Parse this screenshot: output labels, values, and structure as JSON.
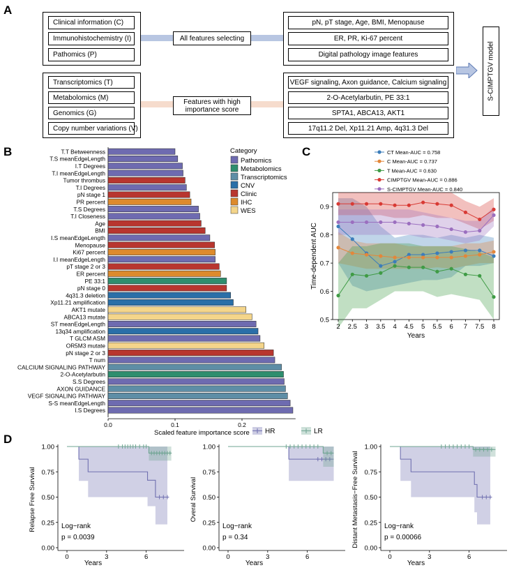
{
  "panels": {
    "A": "A",
    "B": "B",
    "C": "C",
    "D": "D"
  },
  "colors": {
    "Pathomics": "#6E6BB0",
    "Metabolomics": "#2E8E6E",
    "Transcriptomics": "#5E8EA6",
    "CNV": "#2A6FA8",
    "Clinic": "#B8362F",
    "IHC": "#DD8A2C",
    "WES": "#F4D58A",
    "blue_band": "#B8C6E2",
    "peach_band": "#F6DCCD"
  },
  "panelA": {
    "left_top": [
      "Clinical information (C)",
      "Immunohistochemistry (I)",
      "Pathomics (P)"
    ],
    "left_bottom": [
      "Transcriptomics (T)",
      "Metabolomics (M)",
      "Genomics (G)",
      "Copy number variations (V)"
    ],
    "middle_top": "All features selecting",
    "middle_bottom": "Features with high importance score",
    "right_top": [
      "pN, pT stage, Age, BMI, Menopause",
      "ER, PR, Ki-67 percent",
      "Digital pathology image features"
    ],
    "right_bottom": [
      "VEGF signaling, Axon guidance, Calcium signaling",
      "2-O-Acetylarbutin, PE 33:1",
      "SPTA1, ABCA13, AKT1",
      "17q11.2 Del, Xp11.21 Amp, 4q31.3 Del"
    ],
    "model": "S-CIMPTGV model"
  },
  "chart_data": [
    {
      "type": "bar",
      "orientation": "horizontal",
      "xlabel": "Scaled feature importance score",
      "xticks": [
        "0.0",
        "0.1",
        "0.2"
      ],
      "xlim": [
        0,
        0.28
      ],
      "legend_title": "Category",
      "legend": [
        "Pathomics",
        "Metabolomics",
        "Transcriptomics",
        "CNV",
        "Clinic",
        "IHC",
        "WES"
      ],
      "bars": [
        {
          "label": "T.T Betweenness",
          "value": 0.1,
          "cat": "Pathomics"
        },
        {
          "label": "T.S meanEdgeLength",
          "value": 0.104,
          "cat": "Pathomics"
        },
        {
          "label": "I.T Degrees",
          "value": 0.111,
          "cat": "Pathomics"
        },
        {
          "label": "T.I meanEdgeLength",
          "value": 0.112,
          "cat": "Pathomics"
        },
        {
          "label": "Tumor thrombus",
          "value": 0.115,
          "cat": "Clinic"
        },
        {
          "label": "T.I Degrees",
          "value": 0.117,
          "cat": "Pathomics"
        },
        {
          "label": "pN stage 1",
          "value": 0.122,
          "cat": "Clinic"
        },
        {
          "label": "PR percent",
          "value": 0.124,
          "cat": "IHC"
        },
        {
          "label": "T.S Degrees",
          "value": 0.135,
          "cat": "Pathomics"
        },
        {
          "label": "T.I Closeness",
          "value": 0.137,
          "cat": "Pathomics"
        },
        {
          "label": "Age",
          "value": 0.139,
          "cat": "Clinic"
        },
        {
          "label": "BMI",
          "value": 0.145,
          "cat": "Clinic"
        },
        {
          "label": "I.S meanEdgeLength",
          "value": 0.152,
          "cat": "Pathomics"
        },
        {
          "label": "Menopause",
          "value": 0.159,
          "cat": "Clinic"
        },
        {
          "label": "Ki67 percent",
          "value": 0.16,
          "cat": "IHC"
        },
        {
          "label": "I.I meanEdgeLength",
          "value": 0.16,
          "cat": "Pathomics"
        },
        {
          "label": "pT stage 2 or 3",
          "value": 0.166,
          "cat": "Clinic"
        },
        {
          "label": "ER percent",
          "value": 0.168,
          "cat": "IHC"
        },
        {
          "label": "PE 33:1",
          "value": 0.177,
          "cat": "Metabolomics"
        },
        {
          "label": "pN stage 0",
          "value": 0.177,
          "cat": "Clinic"
        },
        {
          "label": "4q31.3 deletion",
          "value": 0.183,
          "cat": "CNV"
        },
        {
          "label": "Xp11.21 amplification",
          "value": 0.187,
          "cat": "CNV"
        },
        {
          "label": "AKT1 mutate",
          "value": 0.206,
          "cat": "WES"
        },
        {
          "label": "ABCA13 mutate",
          "value": 0.215,
          "cat": "WES"
        },
        {
          "label": "ST meanEdgeLength",
          "value": 0.221,
          "cat": "Pathomics"
        },
        {
          "label": "13q34 amplification",
          "value": 0.224,
          "cat": "CNV"
        },
        {
          "label": "T GLCM ASM",
          "value": 0.227,
          "cat": "Pathomics"
        },
        {
          "label": "OR5M3 mutate",
          "value": 0.233,
          "cat": "WES"
        },
        {
          "label": "pN stage 2 or 3",
          "value": 0.247,
          "cat": "Clinic"
        },
        {
          "label": "T num",
          "value": 0.249,
          "cat": "Pathomics"
        },
        {
          "label": "CALCIUM SIGNALING PATHWAY",
          "value": 0.259,
          "cat": "Transcriptomics"
        },
        {
          "label": "2-O-Acetylarbutin",
          "value": 0.262,
          "cat": "Metabolomics"
        },
        {
          "label": "S.S Degrees",
          "value": 0.263,
          "cat": "Pathomics"
        },
        {
          "label": "AXON GUIDANCE",
          "value": 0.265,
          "cat": "Transcriptomics"
        },
        {
          "label": "VEGF SIGNALING PATHWAY",
          "value": 0.268,
          "cat": "Transcriptomics"
        },
        {
          "label": "S-S meanEdgeLength",
          "value": 0.272,
          "cat": "Pathomics"
        },
        {
          "label": "I.S Degrees",
          "value": 0.276,
          "cat": "Pathomics"
        }
      ]
    },
    {
      "type": "line",
      "xlabel": "Years",
      "ylabel": "Time-dependent AUC",
      "x": [
        2,
        2.5,
        3,
        3.5,
        4,
        4.5,
        5,
        5.5,
        6,
        7,
        7.5,
        8
      ],
      "xticks": [
        "2",
        "2.5",
        "3",
        "3.5",
        "4",
        "4.5",
        "5",
        "5.5",
        "6",
        "7",
        "7.5",
        "8"
      ],
      "yticks": [
        "0.5",
        "0.6",
        "0.7",
        "0.8",
        "0.9"
      ],
      "ylim": [
        0.5,
        0.95
      ],
      "series": [
        {
          "name": "CT Mean-AUC = 0.758",
          "color": "#3C7DBA",
          "values": [
            0.83,
            0.785,
            0.735,
            0.69,
            0.705,
            0.73,
            0.73,
            0.735,
            0.74,
            0.745,
            0.745,
            0.725
          ],
          "lower": [
            0.7,
            0.62,
            0.6,
            0.61,
            0.62,
            0.63,
            0.64,
            0.64,
            0.65,
            0.69,
            0.69,
            0.7
          ],
          "upper": [
            0.93,
            0.93,
            0.9,
            0.83,
            0.79,
            0.8,
            0.8,
            0.79,
            0.8,
            0.79,
            0.8,
            0.79
          ]
        },
        {
          "name": "C Mean-AUC = 0.737",
          "color": "#E3873A",
          "values": [
            0.755,
            0.735,
            0.73,
            0.725,
            0.72,
            0.72,
            0.72,
            0.72,
            0.72,
            0.725,
            0.73,
            0.74
          ],
          "lower": [
            0.7,
            0.69,
            0.68,
            0.68,
            0.68,
            0.68,
            0.68,
            0.685,
            0.68,
            0.69,
            0.7,
            0.7
          ],
          "upper": [
            0.81,
            0.78,
            0.77,
            0.77,
            0.77,
            0.76,
            0.76,
            0.76,
            0.76,
            0.77,
            0.77,
            0.78
          ]
        },
        {
          "name": "T Mean-AUC = 0.630",
          "color": "#3F9B45",
          "values": [
            0.585,
            0.66,
            0.655,
            0.665,
            0.69,
            0.685,
            0.685,
            0.67,
            0.68,
            0.66,
            0.655,
            0.58
          ],
          "lower": [
            0.47,
            0.54,
            0.54,
            0.57,
            0.6,
            0.6,
            0.6,
            0.58,
            0.59,
            0.58,
            0.57,
            0.5
          ],
          "upper": [
            0.7,
            0.76,
            0.76,
            0.77,
            0.77,
            0.77,
            0.76,
            0.76,
            0.76,
            0.75,
            0.74,
            0.72
          ]
        },
        {
          "name": "CIMPTGV Mean-AUC = 0.886",
          "color": "#D83A34",
          "values": [
            0.91,
            0.91,
            0.91,
            0.91,
            0.905,
            0.905,
            0.915,
            0.91,
            0.905,
            0.88,
            0.855,
            0.89
          ],
          "lower": [
            0.87,
            0.87,
            0.87,
            0.87,
            0.86,
            0.86,
            0.87,
            0.86,
            0.86,
            0.84,
            0.82,
            0.85
          ],
          "upper": [
            0.95,
            0.95,
            0.95,
            0.95,
            0.95,
            0.95,
            0.95,
            0.95,
            0.95,
            0.92,
            0.9,
            0.93
          ]
        },
        {
          "name": "S-CIMPTGV Mean-AUC = 0.840",
          "color": "#9B6FBF",
          "values": [
            0.845,
            0.845,
            0.845,
            0.845,
            0.845,
            0.84,
            0.835,
            0.83,
            0.82,
            0.81,
            0.815,
            0.87
          ],
          "lower": [
            0.8,
            0.8,
            0.8,
            0.8,
            0.8,
            0.8,
            0.79,
            0.79,
            0.78,
            0.77,
            0.78,
            0.83
          ],
          "upper": [
            0.89,
            0.89,
            0.89,
            0.89,
            0.89,
            0.89,
            0.88,
            0.87,
            0.86,
            0.85,
            0.85,
            0.9
          ]
        }
      ]
    },
    {
      "type": "line",
      "subtype": "kaplan-meier",
      "legend": [
        {
          "name": "HR",
          "color": "#7070B0"
        },
        {
          "name": "LR",
          "color": "#6FA592"
        }
      ],
      "plots": [
        {
          "ylabel": "Relapse Free Survival",
          "xlabel": "Years",
          "test": "Log−rank",
          "pvalue": "p = 0.0039",
          "xticks": [
            "0",
            "3",
            "6"
          ],
          "yticks": [
            "0.00",
            "0.25",
            "0.50",
            "0.75",
            "1.00"
          ],
          "xlim": [
            0,
            8.5
          ],
          "HR": {
            "t": [
              0,
              0.9,
              0.9,
              1.6,
              1.6,
              6.1,
              6.1,
              6.7,
              6.7,
              7.6
            ],
            "s": [
              1,
              1,
              0.875,
              0.875,
              0.75,
              0.75,
              0.667,
              0.667,
              0.5,
              0.5
            ],
            "lo": [
              1,
              1,
              0.66,
              0.66,
              0.5,
              0.5,
              0.41,
              0.41,
              0.23,
              0.23
            ],
            "hi": [
              1,
              1,
              1,
              1,
              1,
              1,
              1,
              1,
              1,
              1
            ],
            "censor": [
              7.0,
              7.3,
              7.6
            ]
          },
          "LR": {
            "t": [
              0,
              6.2,
              6.2,
              7.9
            ],
            "s": [
              1,
              1,
              0.935,
              0.935
            ],
            "lo": [
              1,
              1,
              0.86,
              0.86
            ],
            "hi": [
              1,
              1,
              1,
              1
            ],
            "censor": [
              3.9,
              4.2,
              4.4,
              4.6,
              4.8,
              5.0,
              5.2,
              5.5,
              5.8,
              6.0,
              6.4,
              6.6,
              6.8,
              7.0,
              7.2,
              7.4,
              7.6,
              7.8
            ]
          }
        },
        {
          "ylabel": "Overal Survival",
          "xlabel": "Years",
          "test": "Log−rank",
          "pvalue": "p = 0.34",
          "xticks": [
            "0",
            "3",
            "6"
          ],
          "yticks": [
            "0.00",
            "0.25",
            "0.50",
            "0.75",
            "1.00"
          ],
          "xlim": [
            0,
            8.5
          ],
          "HR": {
            "t": [
              0,
              4.6,
              4.6,
              8.0
            ],
            "s": [
              1,
              1,
              0.875,
              0.875
            ],
            "lo": [
              1,
              1,
              0.66,
              0.66
            ],
            "hi": [
              1,
              1,
              1,
              1
            ],
            "censor": [
              6.8,
              7.1,
              7.4,
              7.7
            ]
          },
          "LR": {
            "t": [
              0,
              7.2,
              7.2,
              8.0
            ],
            "s": [
              1,
              1,
              0.935,
              0.935
            ],
            "lo": [
              1,
              1,
              0.8,
              0.8
            ],
            "hi": [
              1,
              1,
              1,
              1
            ],
            "censor": [
              4.4,
              4.7,
              5.0,
              5.3,
              5.6,
              5.9,
              6.2,
              6.5,
              6.8,
              7.5,
              7.8
            ]
          }
        },
        {
          "ylabel": "Distant Metastasis−Free Survival",
          "xlabel": "Years",
          "test": "Log−rank",
          "pvalue": "p = 0.00066",
          "xticks": [
            "0",
            "3",
            "6"
          ],
          "yticks": [
            "0.00",
            "0.25",
            "0.50",
            "0.75",
            "1.00"
          ],
          "xlim": [
            0,
            8.5
          ],
          "HR": {
            "t": [
              0,
              0.8,
              0.8,
              1.6,
              1.6,
              6.4,
              6.4,
              6.6,
              6.6,
              7.6
            ],
            "s": [
              1,
              1,
              0.875,
              0.875,
              0.75,
              0.75,
              0.625,
              0.625,
              0.5,
              0.5
            ],
            "lo": [
              1,
              1,
              0.66,
              0.66,
              0.5,
              0.5,
              0.35,
              0.35,
              0.23,
              0.23
            ],
            "hi": [
              1,
              1,
              1,
              1,
              1,
              1,
              1,
              1,
              1,
              1
            ],
            "censor": [
              7.0,
              7.3,
              7.6
            ]
          },
          "LR": {
            "t": [
              0,
              6.3,
              6.3,
              8.0
            ],
            "s": [
              1,
              1,
              0.97,
              0.97
            ],
            "lo": [
              1,
              1,
              0.9,
              0.9
            ],
            "hi": [
              1,
              1,
              1,
              1
            ],
            "censor": [
              3.9,
              4.2,
              4.5,
              4.8,
              5.1,
              5.4,
              5.7,
              6.0,
              6.5,
              6.8,
              7.1,
              7.4,
              7.7
            ]
          }
        }
      ]
    }
  ]
}
